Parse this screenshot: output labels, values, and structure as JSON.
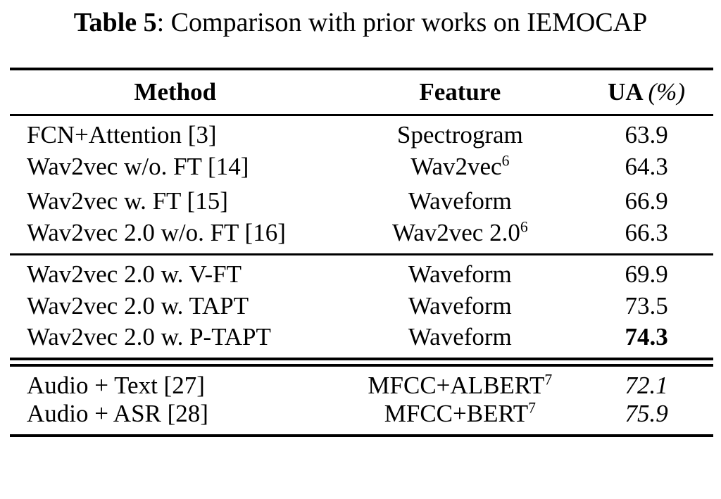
{
  "title": {
    "label": "Table 5",
    "caption": ": Comparison with prior works on IEMOCAP"
  },
  "table": {
    "header": {
      "method": "Method",
      "feature": "Feature",
      "ua_label": "UA",
      "ua_unit": "(%)"
    },
    "groups": [
      {
        "rows": [
          {
            "method": "FCN+Attention [3]",
            "feature": "Spectrogram",
            "feature_sup": "",
            "ua": "63.9"
          },
          {
            "method": "Wav2vec w/o. FT [14]",
            "feature": "Wav2vec",
            "feature_sup": "6",
            "ua": "64.3"
          },
          {
            "method": "Wav2vec w. FT [15]",
            "feature": "Waveform",
            "feature_sup": "",
            "ua": "66.9"
          },
          {
            "method": "Wav2vec 2.0 w/o. FT [16]",
            "feature": "Wav2vec 2.0",
            "feature_sup": "6",
            "ua": "66.3"
          }
        ]
      },
      {
        "rows": [
          {
            "method": "Wav2vec 2.0 w. V-FT",
            "feature": "Waveform",
            "feature_sup": "",
            "ua": "69.9"
          },
          {
            "method": "Wav2vec 2.0 w. TAPT",
            "feature": "Waveform",
            "feature_sup": "",
            "ua": "73.5"
          },
          {
            "method": "Wav2vec 2.0 w. P-TAPT",
            "feature": "Waveform",
            "feature_sup": "",
            "ua": "74.3"
          }
        ]
      },
      {
        "rows": [
          {
            "method": "Audio + Text [27]",
            "feature": "MFCC+ALBERT",
            "feature_sup": "7",
            "ua": "72.1"
          },
          {
            "method": "Audio + ASR [28]",
            "feature": "MFCC+BERT",
            "feature_sup": "7",
            "ua": "75.9"
          }
        ]
      }
    ]
  }
}
